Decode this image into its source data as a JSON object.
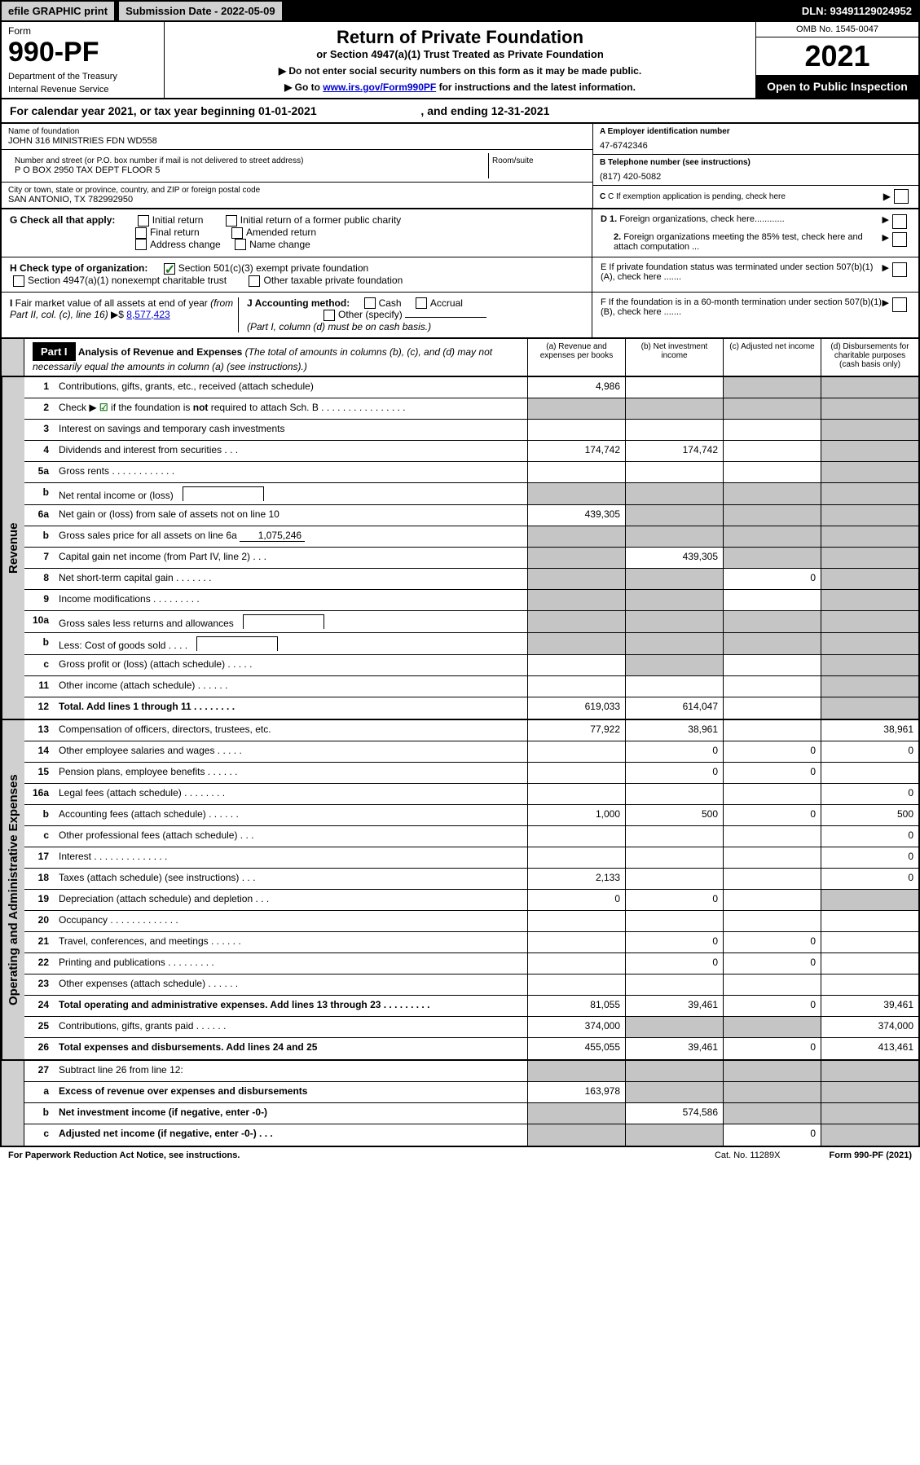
{
  "topbar": {
    "efile": "efile GRAPHIC print",
    "submission_label": "Submission Date - 2022-05-09",
    "dln": "DLN: 93491129024952"
  },
  "header": {
    "form_label": "Form",
    "form_number": "990-PF",
    "dept": "Department of the Treasury",
    "irs": "Internal Revenue Service",
    "title": "Return of Private Foundation",
    "subtitle": "or Section 4947(a)(1) Trust Treated as Private Foundation",
    "note1": "▶ Do not enter social security numbers on this form as it may be made public.",
    "note2_pre": "▶ Go to ",
    "note2_link": "www.irs.gov/Form990PF",
    "note2_post": " for instructions and the latest information.",
    "omb": "OMB No. 1545-0047",
    "year": "2021",
    "open": "Open to Public Inspection"
  },
  "calyear": {
    "text_pre": "For calendar year 2021, or tax year beginning ",
    "begin": "01-01-2021",
    "text_mid": " , and ending ",
    "end": "12-31-2021"
  },
  "info": {
    "name_label": "Name of foundation",
    "name": "JOHN 316 MINISTRIES FDN WD558",
    "addr_label": "Number and street (or P.O. box number if mail is not delivered to street address)",
    "addr": "P O BOX 2950 TAX DEPT FLOOR 5",
    "room_label": "Room/suite",
    "city_label": "City or town, state or province, country, and ZIP or foreign postal code",
    "city": "SAN ANTONIO, TX  782992950",
    "a_label": "A Employer identification number",
    "a_val": "47-6742346",
    "b_label": "B Telephone number (see instructions)",
    "b_val": "(817) 420-5082",
    "c_label": "C If exemption application is pending, check here"
  },
  "checks": {
    "g_label": "G Check all that apply:",
    "g_opts": [
      "Initial return",
      "Initial return of a former public charity",
      "Final return",
      "Amended return",
      "Address change",
      "Name change"
    ],
    "h_label": "H Check type of organization:",
    "h_opt1": "Section 501(c)(3) exempt private foundation",
    "h_opt2": "Section 4947(a)(1) nonexempt charitable trust",
    "h_opt3": "Other taxable private foundation",
    "i_label": "I Fair market value of all assets at end of year (from Part II, col. (c), line 16) ▶$",
    "i_val": "8,577,423",
    "j_label": "J Accounting method:",
    "j_cash": "Cash",
    "j_accrual": "Accrual",
    "j_other": "Other (specify)",
    "j_note": "(Part I, column (d) must be on cash basis.)",
    "d1": "D 1. Foreign organizations, check here............",
    "d2": "2. Foreign organizations meeting the 85% test, check here and attach computation ...",
    "e": "E  If private foundation status was terminated under section 507(b)(1)(A), check here .......",
    "f": "F  If the foundation is in a 60-month termination under section 507(b)(1)(B), check here .......",
    "arrow": "▶"
  },
  "part1": {
    "label": "Part I",
    "title": "Analysis of Revenue and Expenses",
    "title_note": " (The total of amounts in columns (b), (c), and (d) may not necessarily equal the amounts in column (a) (see instructions).)",
    "col_a": "(a) Revenue and expenses per books",
    "col_b": "(b) Net investment income",
    "col_c": "(c) Adjusted net income",
    "col_d": "(d) Disbursements for charitable purposes (cash basis only)"
  },
  "sections": {
    "revenue": "Revenue",
    "expenses": "Operating and Administrative Expenses"
  },
  "rows": [
    {
      "n": "1",
      "d": "Contributions, gifts, grants, etc., received (attach schedule)",
      "a": "4,986",
      "b": "",
      "c": "g",
      "dd": "g"
    },
    {
      "n": "2",
      "d": "Check ▶ ☑ if the foundation is not required to attach Sch. B     .   .   .   .   .   .   .   .   .   .   .   .   .   .   .   .",
      "a": "g",
      "b": "g",
      "c": "g",
      "dd": "g",
      "bold_is_not": true
    },
    {
      "n": "3",
      "d": "Interest on savings and temporary cash investments",
      "a": "",
      "b": "",
      "c": "",
      "dd": "g"
    },
    {
      "n": "4",
      "d": "Dividends and interest from securities     .   .   .",
      "a": "174,742",
      "b": "174,742",
      "c": "",
      "dd": "g"
    },
    {
      "n": "5a",
      "d": "Gross rents     .   .   .   .   .   .   .   .   .   .   .   .",
      "a": "",
      "b": "",
      "c": "",
      "dd": "g"
    },
    {
      "n": "b",
      "d": "Net rental income or (loss)",
      "a": "g",
      "b": "g",
      "c": "g",
      "dd": "g",
      "has_box": true
    },
    {
      "n": "6a",
      "d": "Net gain or (loss) from sale of assets not on line 10",
      "a": "439,305",
      "b": "g",
      "c": "g",
      "dd": "g"
    },
    {
      "n": "b",
      "d": "Gross sales price for all assets on line 6a",
      "a": "g",
      "b": "g",
      "c": "g",
      "dd": "g",
      "inline_val": "1,075,246"
    },
    {
      "n": "7",
      "d": "Capital gain net income (from Part IV, line 2)   .   .   .",
      "a": "g",
      "b": "439,305",
      "c": "g",
      "dd": "g"
    },
    {
      "n": "8",
      "d": "Net short-term capital gain   .   .   .   .   .   .   .",
      "a": "g",
      "b": "g",
      "c": "0",
      "dd": "g"
    },
    {
      "n": "9",
      "d": "Income modifications   .   .   .   .   .   .   .   .   .",
      "a": "g",
      "b": "g",
      "c": "",
      "dd": "g"
    },
    {
      "n": "10a",
      "d": "Gross sales less returns and allowances",
      "a": "g",
      "b": "g",
      "c": "g",
      "dd": "g",
      "has_box": true
    },
    {
      "n": "b",
      "d": "Less: Cost of goods sold     .   .   .   .",
      "a": "g",
      "b": "g",
      "c": "g",
      "dd": "g",
      "has_box": true
    },
    {
      "n": "c",
      "d": "Gross profit or (loss) (attach schedule)     .   .   .   .   .",
      "a": "",
      "b": "g",
      "c": "",
      "dd": "g"
    },
    {
      "n": "11",
      "d": "Other income (attach schedule)    .   .   .   .   .   .",
      "a": "",
      "b": "",
      "c": "",
      "dd": "g"
    },
    {
      "n": "12",
      "d": "Total. Add lines 1 through 11   .   .   .   .   .   .   .   .",
      "a": "619,033",
      "b": "614,047",
      "c": "",
      "dd": "g",
      "bold": true
    }
  ],
  "exp_rows": [
    {
      "n": "13",
      "d": "Compensation of officers, directors, trustees, etc.",
      "a": "77,922",
      "b": "38,961",
      "c": "",
      "dd": "38,961"
    },
    {
      "n": "14",
      "d": "Other employee salaries and wages     .   .   .   .   .",
      "a": "",
      "b": "0",
      "c": "0",
      "dd": "0"
    },
    {
      "n": "15",
      "d": "Pension plans, employee benefits   .   .   .   .   .   .",
      "a": "",
      "b": "0",
      "c": "0",
      "dd": ""
    },
    {
      "n": "16a",
      "d": "Legal fees (attach schedule)  .   .   .   .   .   .   .   .",
      "a": "",
      "b": "",
      "c": "",
      "dd": "0"
    },
    {
      "n": "b",
      "d": "Accounting fees (attach schedule)  .   .   .   .   .   .",
      "a": "1,000",
      "b": "500",
      "c": "0",
      "dd": "500"
    },
    {
      "n": "c",
      "d": "Other professional fees (attach schedule)     .   .   .",
      "a": "",
      "b": "",
      "c": "",
      "dd": "0"
    },
    {
      "n": "17",
      "d": "Interest  .   .   .   .   .   .   .   .   .   .   .   .   .   .",
      "a": "",
      "b": "",
      "c": "",
      "dd": "0"
    },
    {
      "n": "18",
      "d": "Taxes (attach schedule) (see instructions)      .   .   .",
      "a": "2,133",
      "b": "",
      "c": "",
      "dd": "0"
    },
    {
      "n": "19",
      "d": "Depreciation (attach schedule) and depletion    .   .   .",
      "a": "0",
      "b": "0",
      "c": "",
      "dd": "g"
    },
    {
      "n": "20",
      "d": "Occupancy  .   .   .   .   .   .   .   .   .   .   .   .   .",
      "a": "",
      "b": "",
      "c": "",
      "dd": ""
    },
    {
      "n": "21",
      "d": "Travel, conferences, and meetings  .   .   .   .   .   .",
      "a": "",
      "b": "0",
      "c": "0",
      "dd": ""
    },
    {
      "n": "22",
      "d": "Printing and publications  .   .   .   .   .   .   .   .   .",
      "a": "",
      "b": "0",
      "c": "0",
      "dd": ""
    },
    {
      "n": "23",
      "d": "Other expenses (attach schedule)   .   .   .   .   .   .",
      "a": "",
      "b": "",
      "c": "",
      "dd": ""
    },
    {
      "n": "24",
      "d": "Total operating and administrative expenses. Add lines 13 through 23   .   .   .   .   .   .   .   .   .",
      "a": "81,055",
      "b": "39,461",
      "c": "0",
      "dd": "39,461",
      "bold": true
    },
    {
      "n": "25",
      "d": "Contributions, gifts, grants paid     .   .   .   .   .   .",
      "a": "374,000",
      "b": "g",
      "c": "g",
      "dd": "374,000"
    },
    {
      "n": "26",
      "d": "Total expenses and disbursements. Add lines 24 and 25",
      "a": "455,055",
      "b": "39,461",
      "c": "0",
      "dd": "413,461",
      "bold": true
    }
  ],
  "net_rows": [
    {
      "n": "27",
      "d": "Subtract line 26 from line 12:",
      "a": "g",
      "b": "g",
      "c": "g",
      "dd": "g"
    },
    {
      "n": "a",
      "d": "Excess of revenue over expenses and disbursements",
      "a": "163,978",
      "b": "g",
      "c": "g",
      "dd": "g",
      "bold": true
    },
    {
      "n": "b",
      "d": "Net investment income (if negative, enter -0-)",
      "a": "g",
      "b": "574,586",
      "c": "g",
      "dd": "g",
      "bold": true
    },
    {
      "n": "c",
      "d": "Adjusted net income (if negative, enter -0-)    .   .   .",
      "a": "g",
      "b": "g",
      "c": "0",
      "dd": "g",
      "bold": true
    }
  ],
  "footer": {
    "pra": "For Paperwork Reduction Act Notice, see instructions.",
    "cat": "Cat. No. 11289X",
    "form": "Form 990-PF (2021)"
  }
}
